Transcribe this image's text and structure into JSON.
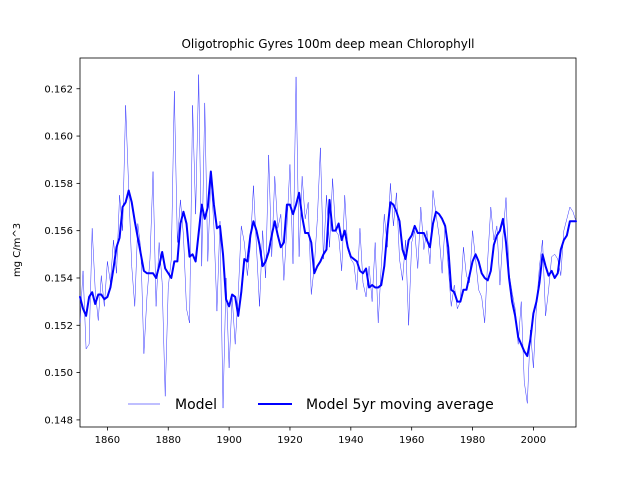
{
  "chart_data": {
    "type": "line",
    "title": "Oligotrophic Gyres 100m deep mean Chlorophyll",
    "xlabel": "",
    "ylabel": "mg C/m^3",
    "xlim": [
      1851,
      2014
    ],
    "ylim": [
      0.1477,
      0.1633
    ],
    "x_ticks": [
      1860,
      1880,
      1900,
      1920,
      1940,
      1960,
      1980,
      2000
    ],
    "y_ticks": [
      0.148,
      0.15,
      0.152,
      0.154,
      0.156,
      0.158,
      0.16,
      0.162
    ],
    "y_tick_labels": [
      "0.148",
      "0.150",
      "0.152",
      "0.154",
      "0.156",
      "0.158",
      "0.160",
      "0.162"
    ],
    "grid": false,
    "legend_position": "bottom",
    "colors": {
      "model": "#0000ff",
      "average": "#0000ff"
    },
    "series": [
      {
        "name": "Model",
        "style": "thin",
        "x": [
          1851,
          1852,
          1853,
          1854,
          1855,
          1856,
          1857,
          1858,
          1859,
          1860,
          1861,
          1862,
          1863,
          1864,
          1865,
          1866,
          1867,
          1868,
          1869,
          1870,
          1871,
          1872,
          1873,
          1874,
          1875,
          1876,
          1877,
          1878,
          1879,
          1880,
          1881,
          1882,
          1883,
          1884,
          1885,
          1886,
          1887,
          1888,
          1889,
          1890,
          1891,
          1892,
          1893,
          1894,
          1895,
          1896,
          1897,
          1898,
          1899,
          1900,
          1901,
          1902,
          1903,
          1904,
          1905,
          1906,
          1907,
          1908,
          1909,
          1910,
          1911,
          1912,
          1913,
          1914,
          1915,
          1916,
          1917,
          1918,
          1919,
          1920,
          1921,
          1922,
          1923,
          1924,
          1925,
          1926,
          1927,
          1928,
          1929,
          1930,
          1931,
          1932,
          1933,
          1934,
          1935,
          1936,
          1937,
          1938,
          1939,
          1940,
          1941,
          1942,
          1943,
          1944,
          1945,
          1946,
          1947,
          1948,
          1949,
          1950,
          1951,
          1952,
          1953,
          1954,
          1955,
          1956,
          1957,
          1958,
          1959,
          1960,
          1961,
          1962,
          1963,
          1964,
          1965,
          1966,
          1967,
          1968,
          1969,
          1970,
          1971,
          1972,
          1973,
          1974,
          1975,
          1976,
          1977,
          1978,
          1979,
          1980,
          1981,
          1982,
          1983,
          1984,
          1985,
          1986,
          1987,
          1988,
          1989,
          1990,
          1991,
          1992,
          1993,
          1994,
          1995,
          1996,
          1997,
          1998,
          1999,
          2000,
          2001,
          2002,
          2003,
          2004,
          2005,
          2006,
          2007,
          2008,
          2009,
          2010,
          2011,
          2012,
          2013,
          2014
        ],
        "y": [
          0.1521,
          0.1543,
          0.151,
          0.1512,
          0.1561,
          0.1535,
          0.1522,
          0.1541,
          0.1528,
          0.1547,
          0.1538,
          0.1556,
          0.1542,
          0.1575,
          0.156,
          0.1613,
          0.1578,
          0.1545,
          0.1528,
          0.1563,
          0.1552,
          0.1508,
          0.1532,
          0.1548,
          0.1585,
          0.1528,
          0.1555,
          0.1538,
          0.149,
          0.1536,
          0.1548,
          0.1619,
          0.1555,
          0.1573,
          0.1558,
          0.1527,
          0.1521,
          0.1613,
          0.1567,
          0.1626,
          0.1545,
          0.1614,
          0.1547,
          0.1583,
          0.1562,
          0.1526,
          0.1564,
          0.1485,
          0.154,
          0.1502,
          0.1532,
          0.1512,
          0.1533,
          0.1562,
          0.1555,
          0.1541,
          0.1554,
          0.1579,
          0.1553,
          0.1528,
          0.156,
          0.154,
          0.1592,
          0.1549,
          0.1583,
          0.1561,
          0.1567,
          0.1539,
          0.1562,
          0.1588,
          0.1546,
          0.1625,
          0.1549,
          0.1583,
          0.1565,
          0.1572,
          0.1533,
          0.1545,
          0.1565,
          0.1595,
          0.1548,
          0.1575,
          0.1553,
          0.1582,
          0.156,
          0.1558,
          0.1543,
          0.1575,
          0.1552,
          0.1548,
          0.1546,
          0.1535,
          0.1561,
          0.1538,
          0.1532,
          0.1545,
          0.153,
          0.1555,
          0.1521,
          0.1545,
          0.1567,
          0.1553,
          0.158,
          0.1562,
          0.1576,
          0.1548,
          0.1539,
          0.1556,
          0.152,
          0.1555,
          0.156,
          0.1544,
          0.157,
          0.1552,
          0.156,
          0.1546,
          0.1577,
          0.1567,
          0.1558,
          0.1542,
          0.1563,
          0.1545,
          0.1528,
          0.1537,
          0.1527,
          0.153,
          0.1553,
          0.1541,
          0.1538,
          0.156,
          0.1548,
          0.1535,
          0.1532,
          0.1521,
          0.1548,
          0.157,
          0.1556,
          0.1562,
          0.1537,
          0.1558,
          0.1574,
          0.1542,
          0.1534,
          0.1527,
          0.1512,
          0.153,
          0.1496,
          0.1487,
          0.1518,
          0.1502,
          0.1528,
          0.1545,
          0.1556,
          0.1524,
          0.1535,
          0.1549,
          0.155,
          0.1548,
          0.1541,
          0.156,
          0.1565,
          0.157,
          0.1568,
          0.1564
        ],
        "linewidth": 0.4
      },
      {
        "name": "Model 5yr moving average",
        "style": "thick",
        "x": [
          1851,
          1852,
          1853,
          1854,
          1855,
          1856,
          1857,
          1858,
          1859,
          1860,
          1861,
          1862,
          1863,
          1864,
          1865,
          1866,
          1867,
          1868,
          1869,
          1870,
          1871,
          1872,
          1873,
          1874,
          1875,
          1876,
          1877,
          1878,
          1879,
          1880,
          1881,
          1882,
          1883,
          1884,
          1885,
          1886,
          1887,
          1888,
          1889,
          1890,
          1891,
          1892,
          1893,
          1894,
          1895,
          1896,
          1897,
          1898,
          1899,
          1900,
          1901,
          1902,
          1903,
          1904,
          1905,
          1906,
          1907,
          1908,
          1909,
          1910,
          1911,
          1912,
          1913,
          1914,
          1915,
          1916,
          1917,
          1918,
          1919,
          1920,
          1921,
          1922,
          1923,
          1924,
          1925,
          1926,
          1927,
          1928,
          1929,
          1930,
          1931,
          1932,
          1933,
          1934,
          1935,
          1936,
          1937,
          1938,
          1939,
          1940,
          1941,
          1942,
          1943,
          1944,
          1945,
          1946,
          1947,
          1948,
          1949,
          1950,
          1951,
          1952,
          1953,
          1954,
          1955,
          1956,
          1957,
          1958,
          1959,
          1960,
          1961,
          1962,
          1963,
          1964,
          1965,
          1966,
          1967,
          1968,
          1969,
          1970,
          1971,
          1972,
          1973,
          1974,
          1975,
          1976,
          1977,
          1978,
          1979,
          1980,
          1981,
          1982,
          1983,
          1984,
          1985,
          1986,
          1987,
          1988,
          1989,
          1990,
          1991,
          1992,
          1993,
          1994,
          1995,
          1996,
          1997,
          1998,
          1999,
          2000,
          2001,
          2002,
          2003,
          2004,
          2005,
          2006,
          2007,
          2008,
          2009,
          2010,
          2011,
          2012,
          2013,
          2014
        ],
        "y": [
          0.1532,
          0.1527,
          0.1524,
          0.1532,
          0.1534,
          0.1529,
          0.1533,
          0.1533,
          0.1531,
          0.1532,
          0.1536,
          0.1544,
          0.1553,
          0.1557,
          0.157,
          0.1572,
          0.1577,
          0.1572,
          0.1564,
          0.1557,
          0.155,
          0.1543,
          0.1542,
          0.1542,
          0.1542,
          0.154,
          0.1545,
          0.1551,
          0.1544,
          0.1542,
          0.154,
          0.1547,
          0.1547,
          0.1563,
          0.1568,
          0.1563,
          0.1549,
          0.155,
          0.1547,
          0.1559,
          0.1571,
          0.1565,
          0.157,
          0.1585,
          0.1571,
          0.1561,
          0.1562,
          0.155,
          0.1531,
          0.1528,
          0.1533,
          0.1532,
          0.1524,
          0.1534,
          0.1548,
          0.1547,
          0.1558,
          0.1564,
          0.156,
          0.1554,
          0.1545,
          0.1547,
          0.1551,
          0.1558,
          0.1564,
          0.1558,
          0.1553,
          0.1555,
          0.1571,
          0.1571,
          0.1567,
          0.1571,
          0.1576,
          0.1566,
          0.1559,
          0.1559,
          0.1555,
          0.1542,
          0.1545,
          0.1547,
          0.155,
          0.1552,
          0.1573,
          0.156,
          0.156,
          0.1563,
          0.1556,
          0.156,
          0.1553,
          0.1549,
          0.1548,
          0.1547,
          0.1543,
          0.1542,
          0.1544,
          0.1536,
          0.1537,
          0.1536,
          0.1536,
          0.1537,
          0.1545,
          0.156,
          0.1572,
          0.1571,
          0.1568,
          0.1564,
          0.1552,
          0.1548,
          0.1556,
          0.1558,
          0.1562,
          0.1559,
          0.1559,
          0.1559,
          0.1556,
          0.1553,
          0.1563,
          0.1568,
          0.1567,
          0.1565,
          0.1562,
          0.1553,
          0.1535,
          0.1534,
          0.153,
          0.153,
          0.1535,
          0.1535,
          0.1541,
          0.1547,
          0.155,
          0.1547,
          0.1542,
          0.154,
          0.1539,
          0.1543,
          0.1554,
          0.1558,
          0.156,
          0.1565,
          0.1555,
          0.154,
          0.153,
          0.1524,
          0.1515,
          0.1512,
          0.1509,
          0.1507,
          0.1514,
          0.1525,
          0.153,
          0.1538,
          0.155,
          0.1545,
          0.1541,
          0.1543,
          0.154,
          0.1542,
          0.1552,
          0.1556,
          0.1558,
          0.1564,
          0.1564,
          0.1564
        ],
        "linewidth": 2
      }
    ]
  }
}
